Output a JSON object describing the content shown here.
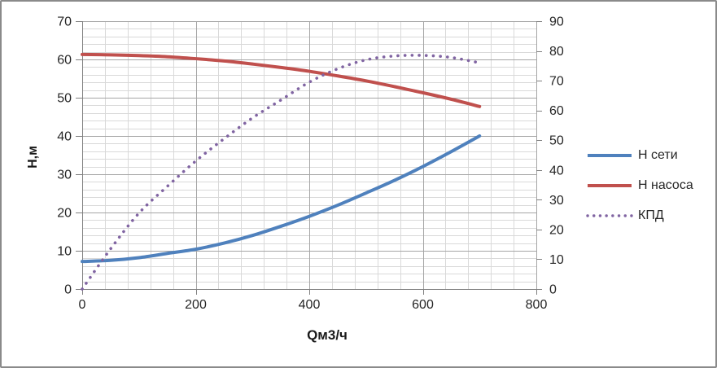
{
  "chart_data": {
    "type": "line",
    "title": "",
    "xlabel": "Qм3/ч",
    "ylabel_left": "Н,м",
    "x_range": [
      0,
      800
    ],
    "y_left_range": [
      0,
      70
    ],
    "y_right_range": [
      0,
      90
    ],
    "x_ticks": [
      0,
      200,
      400,
      600,
      800
    ],
    "y_left_ticks": [
      0,
      10,
      20,
      30,
      40,
      50,
      60,
      70
    ],
    "y_right_ticks": [
      0,
      10,
      20,
      30,
      40,
      50,
      60,
      70,
      80,
      90
    ],
    "x_minor_step": 40,
    "y_minor_step": 2,
    "grid": true,
    "legend_position": "right",
    "x": [
      0,
      50,
      100,
      150,
      200,
      250,
      300,
      350,
      400,
      450,
      500,
      550,
      600,
      650,
      700
    ],
    "series": [
      {
        "name": "Н сети",
        "color": "#4F81BD",
        "style": "solid",
        "axis": "left",
        "values": [
          7.2,
          7.5,
          8.2,
          9.3,
          10.4,
          12.0,
          14.0,
          16.4,
          19.0,
          21.9,
          25.1,
          28.4,
          32.0,
          35.9,
          40.0
        ]
      },
      {
        "name": "Н насоса",
        "color": "#C0504D",
        "style": "solid",
        "axis": "left",
        "values": [
          61.3,
          61.2,
          61.0,
          60.7,
          60.2,
          59.6,
          58.8,
          57.9,
          56.9,
          55.7,
          54.4,
          52.9,
          51.3,
          49.6,
          47.7
        ]
      },
      {
        "name": "КПД",
        "color": "#8064A2",
        "style": "dotted",
        "axis": "right",
        "values": [
          0,
          13.5,
          25.5,
          34.5,
          43.0,
          50.5,
          57.5,
          63.5,
          69.5,
          74.0,
          77.0,
          78.3,
          78.5,
          77.8,
          76.0
        ]
      }
    ]
  },
  "colors": {
    "background": "#FFFFFF",
    "border": "#8A8A8A",
    "grid_minor": "#D9D9D9",
    "grid_major": "#A6A6A6",
    "axis_line": "#808080",
    "text": "#262626"
  }
}
